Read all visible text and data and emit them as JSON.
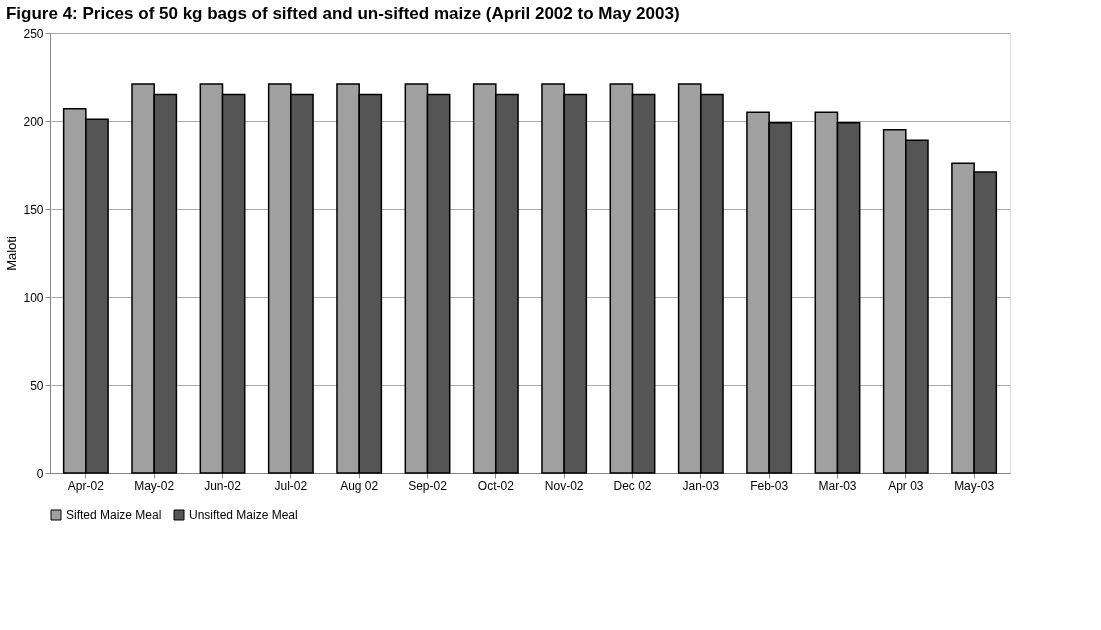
{
  "chart_data": {
    "type": "bar",
    "title": "Figure 4: Prices of 50 kg bags of sifted and un-sifted maize (April 2002 to May 2003)",
    "ylabel": "Maloti",
    "categories": [
      "Apr-02",
      "May-02",
      "Jun-02",
      "Jul-02",
      "Aug 02",
      "Sep-02",
      "Oct-02",
      "Nov-02",
      "Dec 02",
      "Jan-03",
      "Feb-03",
      "Mar-03",
      "Apr 03",
      "May-03"
    ],
    "series": [
      {
        "name": "Sifted Maize Meal",
        "color": "#a0a0a0",
        "values": [
          207,
          221,
          221,
          221,
          221,
          221,
          221,
          221,
          221,
          221,
          205,
          205,
          195,
          176
        ]
      },
      {
        "name": "Unsifted Maize Meal",
        "color": "#555555",
        "values": [
          201,
          215,
          215,
          215,
          215,
          215,
          215,
          215,
          215,
          215,
          199,
          199,
          189,
          171
        ]
      }
    ],
    "ylim": [
      0,
      250
    ],
    "yticks": [
      0,
      50,
      100,
      150,
      200,
      250
    ],
    "grid": "y",
    "legend": "bottom"
  }
}
